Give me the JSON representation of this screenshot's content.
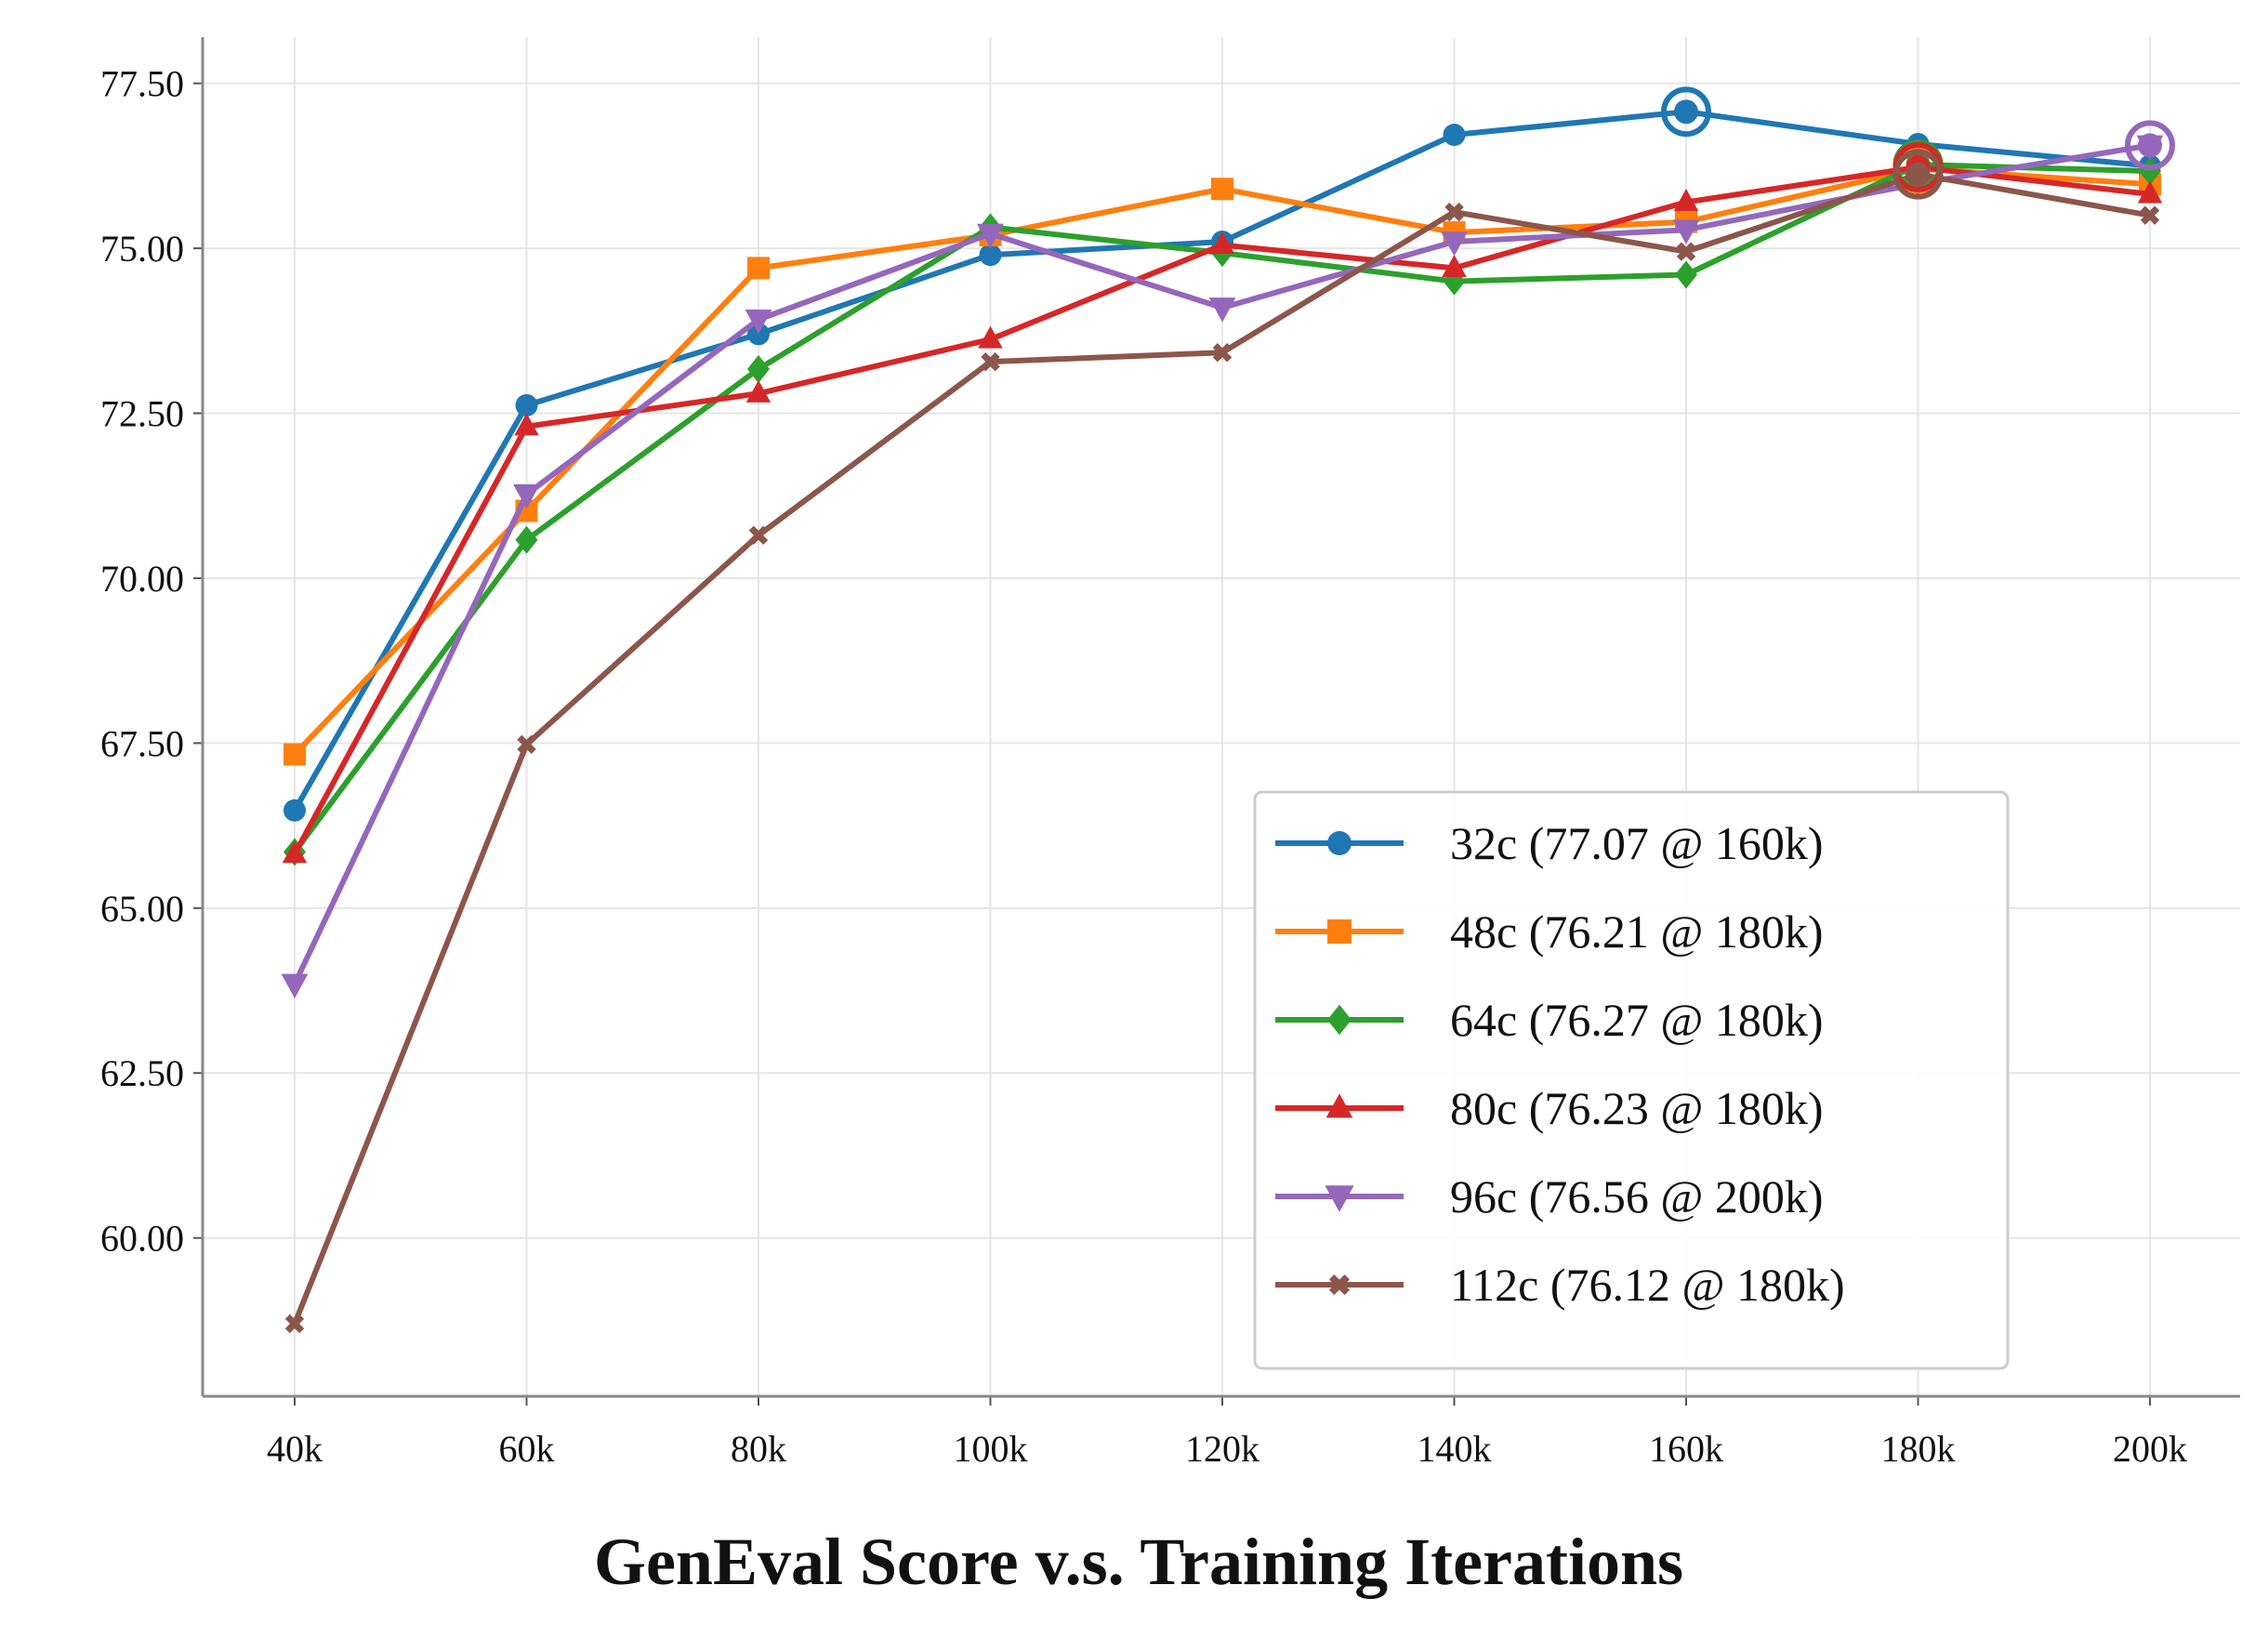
{
  "chart_data": {
    "type": "line",
    "title": "GenEval Score v.s. Training Iterations",
    "xlabel": "",
    "ylabel": "",
    "categories": [
      "40k",
      "60k",
      "80k",
      "100k",
      "120k",
      "140k",
      "160k",
      "180k",
      "200k"
    ],
    "ylim": [
      57.6,
      78.2
    ],
    "yticks": [
      "60.00",
      "62.50",
      "65.00",
      "67.50",
      "70.00",
      "72.50",
      "75.00",
      "77.50"
    ],
    "grid": true,
    "legend_position": "lower-right",
    "series": [
      {
        "name": "32c (77.07 @ 160k)",
        "color": "#1f77b4",
        "marker": "circle",
        "values": [
          66.48,
          72.62,
          73.7,
          74.9,
          75.1,
          76.72,
          77.07,
          76.58,
          76.25
        ],
        "best_index": 6
      },
      {
        "name": "48c (76.21 @ 180k)",
        "color": "#ff7f0e",
        "marker": "square",
        "values": [
          67.33,
          71.02,
          74.7,
          75.2,
          75.9,
          75.24,
          75.4,
          76.21,
          75.97
        ],
        "best_index": 7
      },
      {
        "name": "64c (76.27 @ 180k)",
        "color": "#2ca02c",
        "marker": "diamond",
        "values": [
          65.85,
          70.58,
          73.17,
          75.32,
          74.93,
          74.5,
          74.6,
          76.27,
          76.17
        ],
        "best_index": 7
      },
      {
        "name": "80c (76.23 @ 180k)",
        "color": "#d62728",
        "marker": "triangle-up",
        "values": [
          65.82,
          72.3,
          72.8,
          73.62,
          75.05,
          74.7,
          75.7,
          76.23,
          75.82
        ],
        "best_index": 7
      },
      {
        "name": "96c (76.56 @ 200k)",
        "color": "#9467bd",
        "marker": "triangle-down",
        "values": [
          63.85,
          71.27,
          73.92,
          75.22,
          74.1,
          75.1,
          75.28,
          75.98,
          76.56
        ],
        "best_index": 8
      },
      {
        "name": "112c (76.12 @ 180k)",
        "color": "#8c564b",
        "marker": "x",
        "values": [
          58.7,
          67.48,
          70.65,
          73.28,
          73.42,
          75.55,
          74.95,
          76.12,
          75.5
        ],
        "best_index": 7
      }
    ]
  }
}
